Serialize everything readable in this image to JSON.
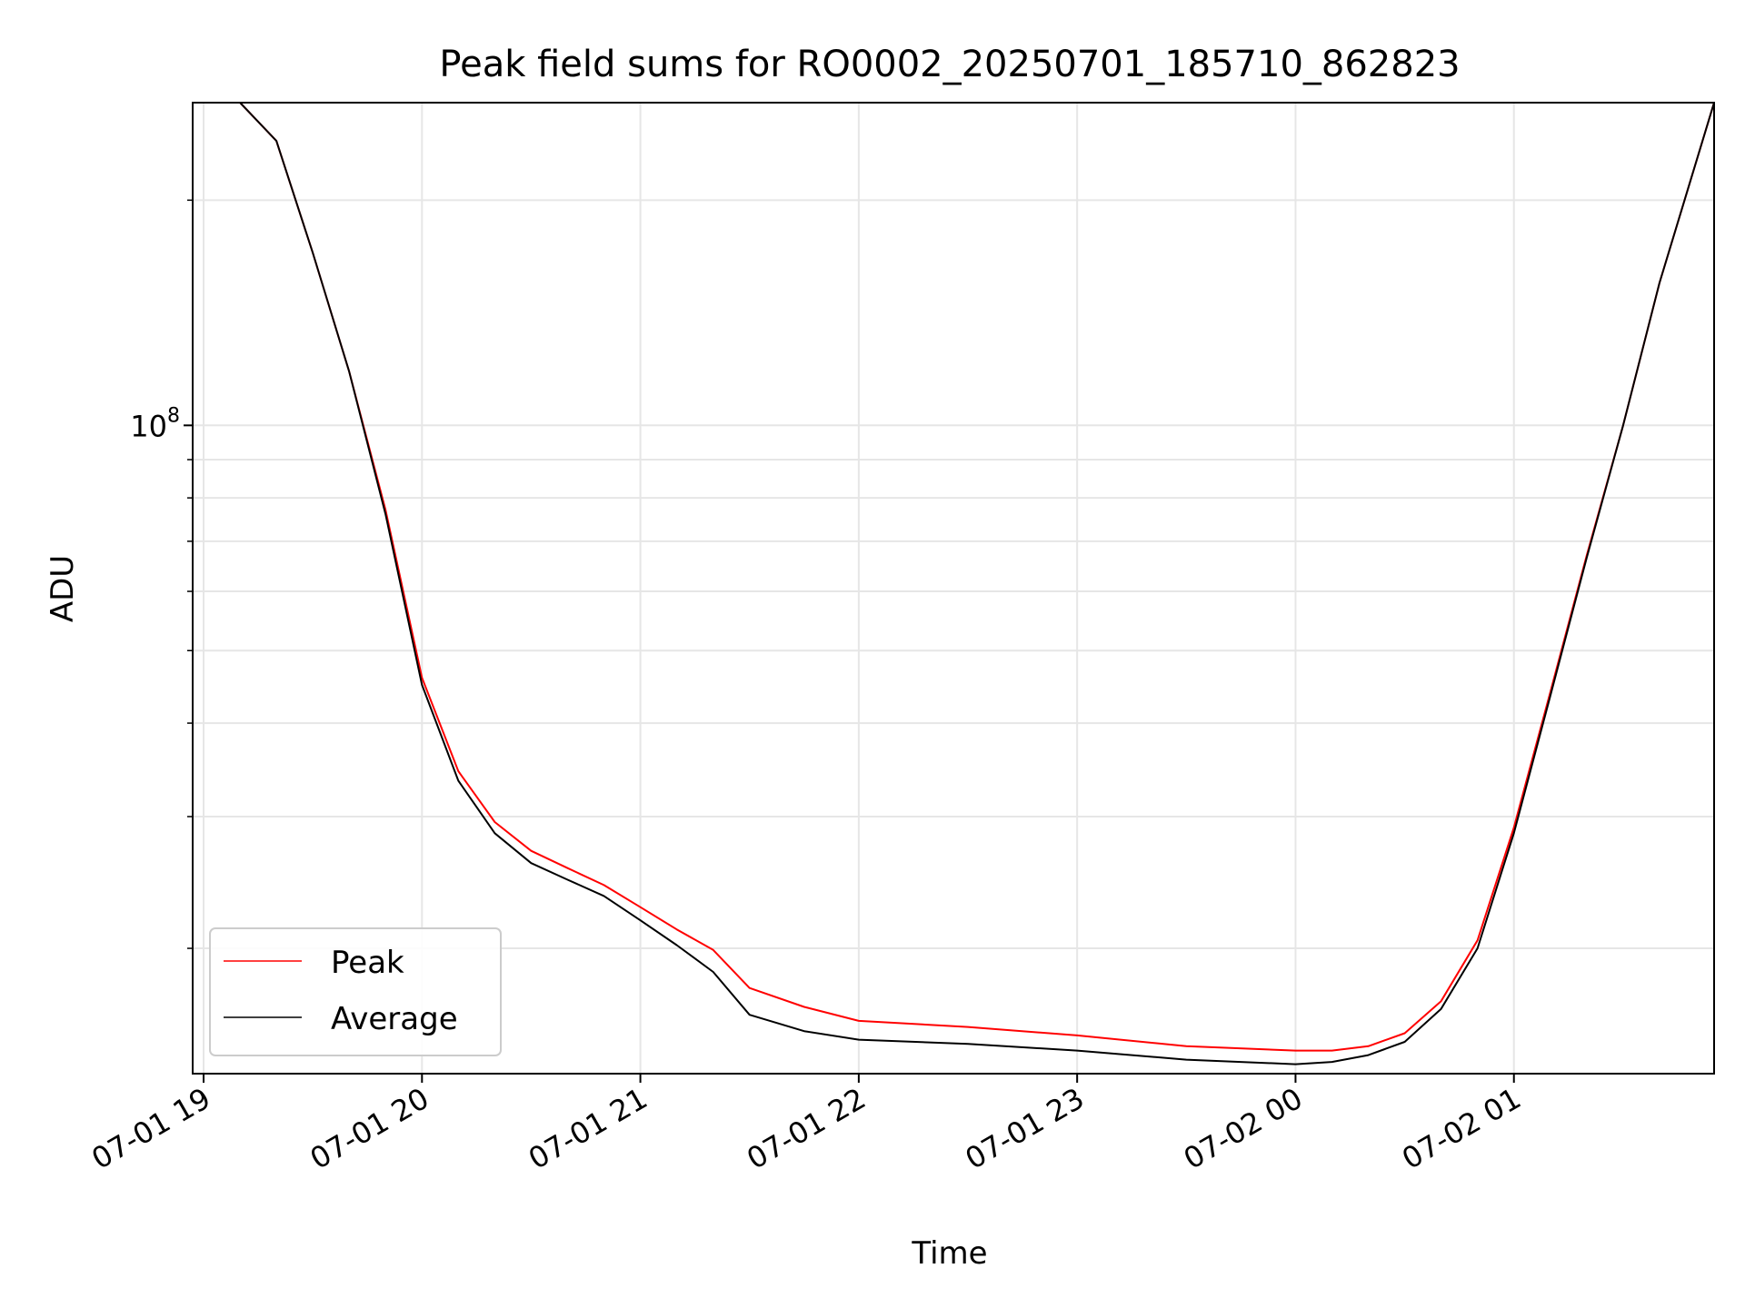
{
  "chart_data": {
    "type": "line",
    "title": "Peak field sums for RO0002_20250701_185710_862823",
    "xlabel": "Time",
    "ylabel": "ADU",
    "yscale": "log",
    "ytick_major": {
      "base": "10",
      "exponent": "8",
      "value": 100000000
    },
    "ylim": [
      13600000,
      270000000
    ],
    "xlim": [
      "2025-07-01 18:57",
      "2025-07-02 01:55"
    ],
    "x_tick_labels": [
      "07-01 19",
      "07-01 20",
      "07-01 21",
      "07-01 22",
      "07-01 23",
      "07-02 00",
      "07-02 01"
    ],
    "x_ticks": [
      "2025-07-01 19:00",
      "2025-07-01 20:00",
      "2025-07-01 21:00",
      "2025-07-01 22:00",
      "2025-07-01 23:00",
      "2025-07-02 00:00",
      "2025-07-02 01:00"
    ],
    "grid": true,
    "legend_position": "lower-left",
    "series": [
      {
        "name": "Peak",
        "color": "#ff0000",
        "x": [
          "2025-07-01 18:57",
          "2025-07-01 19:10",
          "2025-07-01 19:20",
          "2025-07-01 19:30",
          "2025-07-01 19:40",
          "2025-07-01 19:50",
          "2025-07-01 20:00",
          "2025-07-01 20:10",
          "2025-07-01 20:20",
          "2025-07-01 20:30",
          "2025-07-01 20:40",
          "2025-07-01 20:50",
          "2025-07-01 21:00",
          "2025-07-01 21:10",
          "2025-07-01 21:20",
          "2025-07-01 21:30",
          "2025-07-01 21:45",
          "2025-07-01 22:00",
          "2025-07-01 22:30",
          "2025-07-01 23:00",
          "2025-07-01 23:30",
          "2025-07-02 00:00",
          "2025-07-02 00:10",
          "2025-07-02 00:20",
          "2025-07-02 00:30",
          "2025-07-02 00:40",
          "2025-07-02 00:50",
          "2025-07-02 01:00",
          "2025-07-02 01:10",
          "2025-07-02 01:20",
          "2025-07-02 01:30",
          "2025-07-02 01:40",
          "2025-07-02 01:55"
        ],
        "values": [
          270000000,
          270000000,
          240000000,
          170000000,
          118000000,
          77000000,
          46000000,
          34500000,
          29500000,
          27000000,
          25600000,
          24300000,
          22700000,
          21200000,
          19900000,
          17700000,
          16700000,
          16000000,
          15700000,
          15300000,
          14800000,
          14600000,
          14600000,
          14800000,
          15400000,
          17000000,
          20500000,
          29000000,
          44000000,
          67000000,
          100000000,
          155000000,
          270000000
        ]
      },
      {
        "name": "Average",
        "color": "#000000",
        "x": [
          "2025-07-01 18:57",
          "2025-07-01 19:10",
          "2025-07-01 19:20",
          "2025-07-01 19:30",
          "2025-07-01 19:40",
          "2025-07-01 19:50",
          "2025-07-01 20:00",
          "2025-07-01 20:10",
          "2025-07-01 20:20",
          "2025-07-01 20:30",
          "2025-07-01 20:40",
          "2025-07-01 20:50",
          "2025-07-01 21:00",
          "2025-07-01 21:10",
          "2025-07-01 21:20",
          "2025-07-01 21:30",
          "2025-07-01 21:45",
          "2025-07-01 22:00",
          "2025-07-01 22:30",
          "2025-07-01 23:00",
          "2025-07-01 23:30",
          "2025-07-02 00:00",
          "2025-07-02 00:10",
          "2025-07-02 00:20",
          "2025-07-02 00:30",
          "2025-07-02 00:40",
          "2025-07-02 00:50",
          "2025-07-02 01:00",
          "2025-07-02 01:10",
          "2025-07-02 01:20",
          "2025-07-02 01:30",
          "2025-07-02 01:40",
          "2025-07-02 01:55"
        ],
        "values": [
          270000000,
          270000000,
          240000000,
          170000000,
          118000000,
          76000000,
          45000000,
          33500000,
          28500000,
          26000000,
          24700000,
          23500000,
          21800000,
          20200000,
          18600000,
          16300000,
          15500000,
          15100000,
          14900000,
          14600000,
          14200000,
          14000000,
          14100000,
          14400000,
          15000000,
          16600000,
          20000000,
          28500000,
          43500000,
          66500000,
          100000000,
          155000000,
          270000000
        ]
      }
    ]
  }
}
